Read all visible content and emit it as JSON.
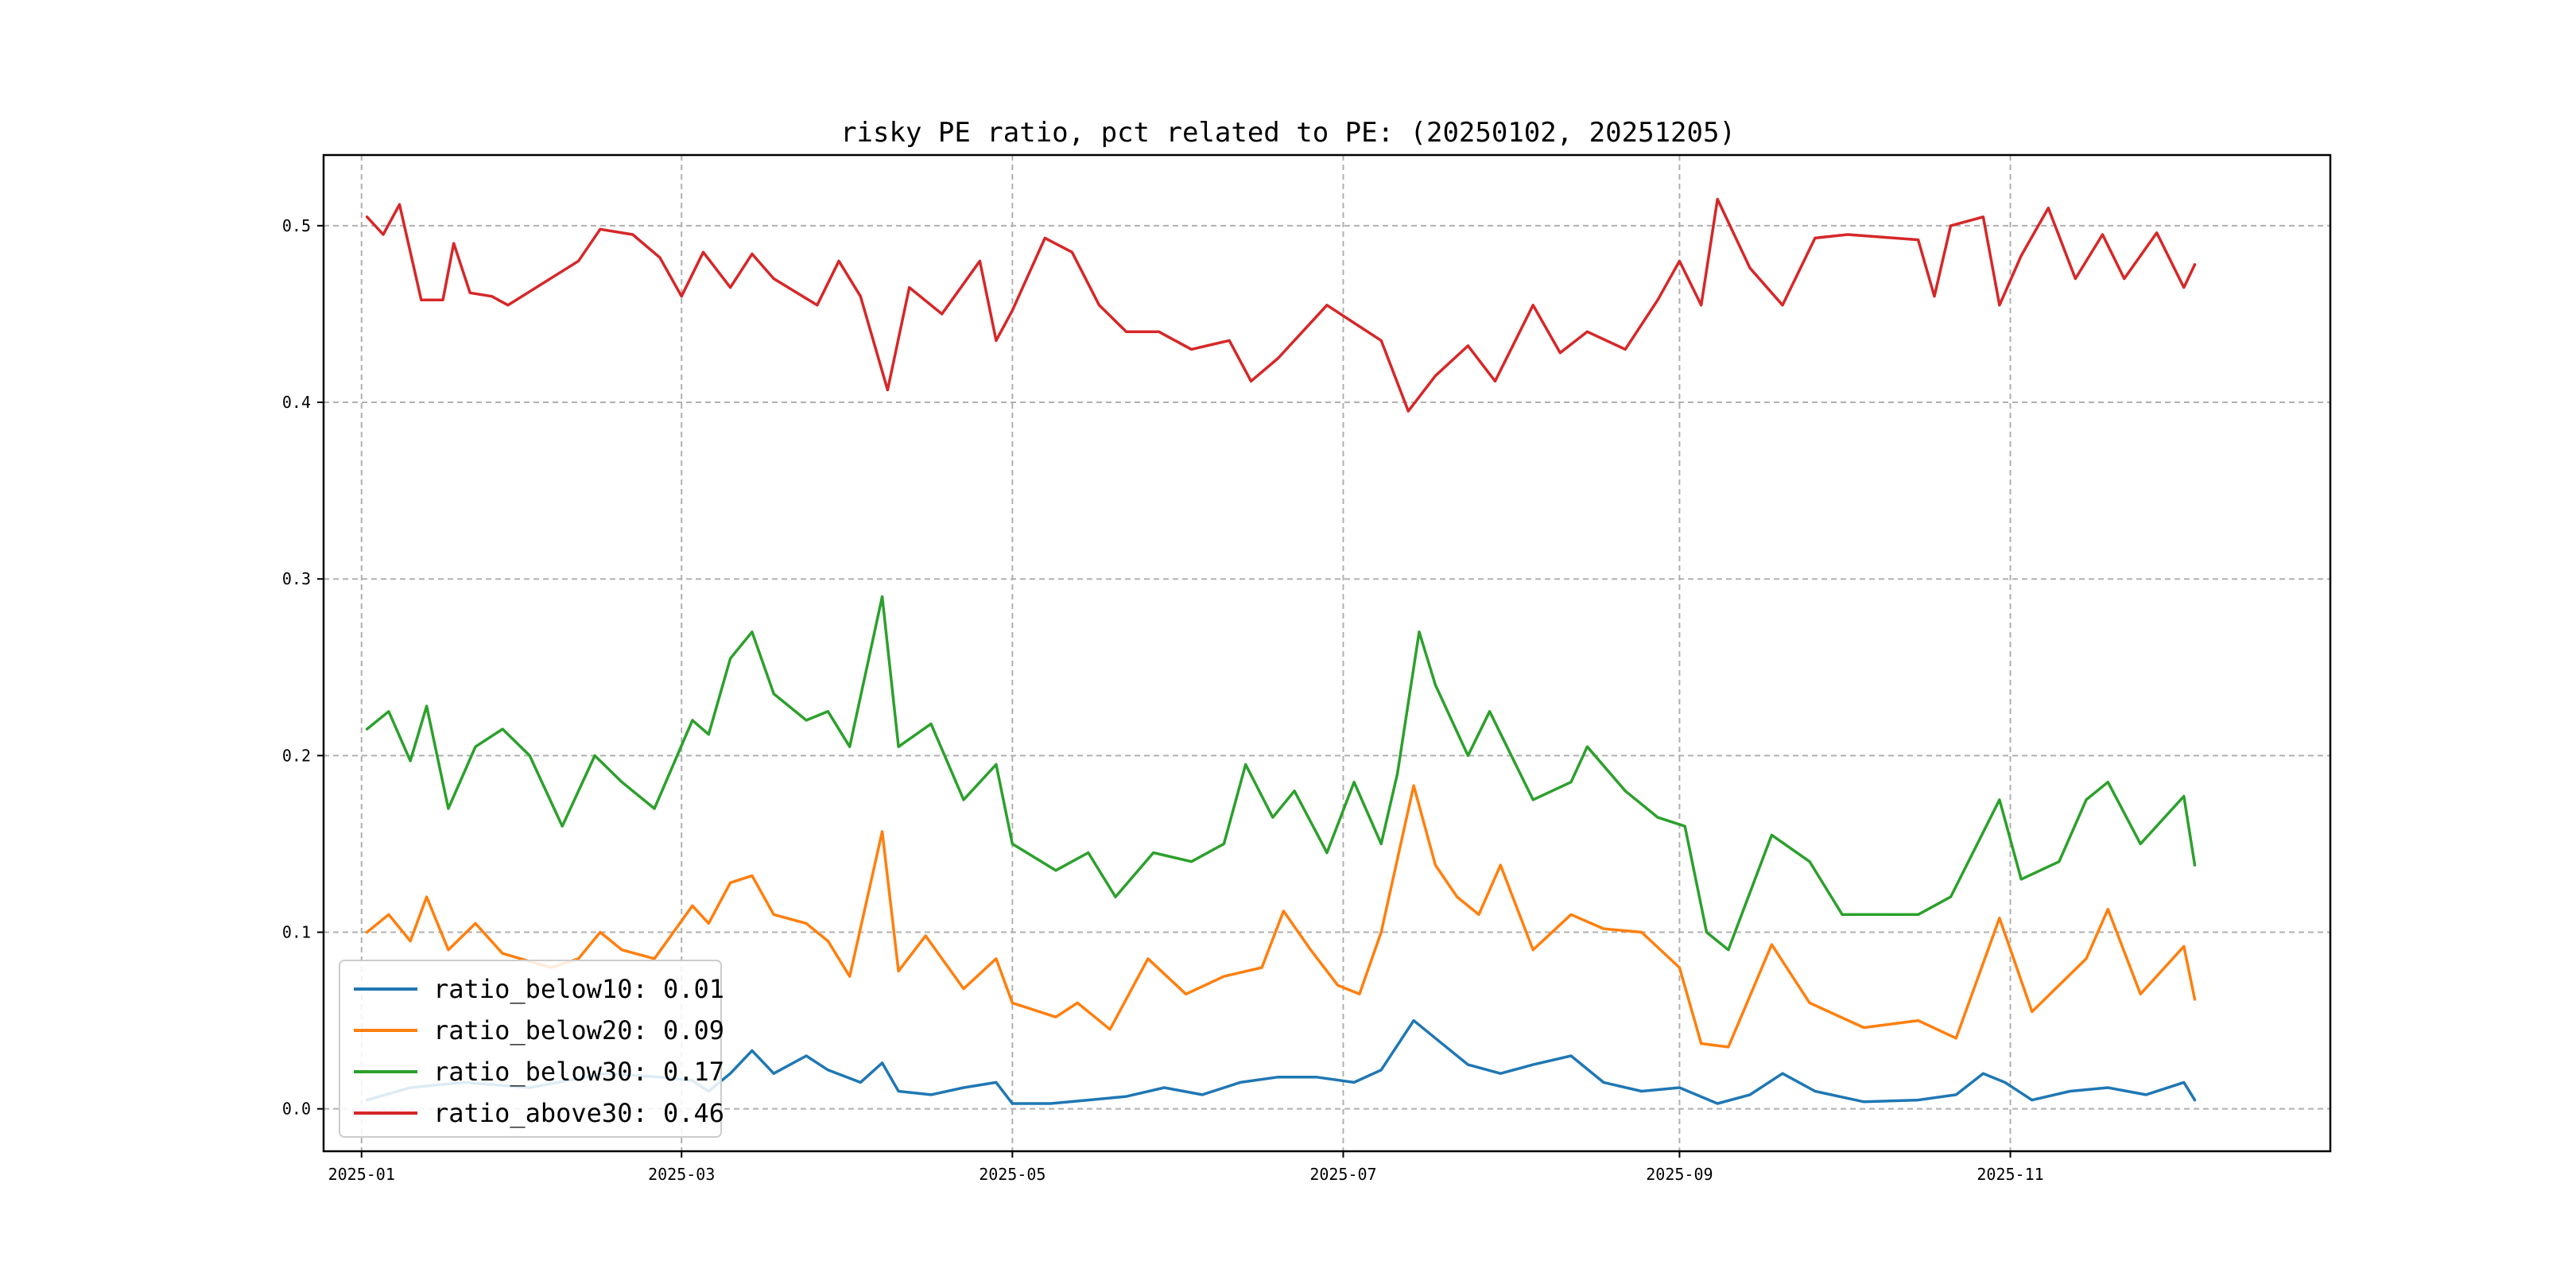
{
  "chart_data": {
    "type": "line",
    "title": "risky PE ratio, pct related to PE: (20250102, 20251205)",
    "xlabel": "",
    "ylabel": "",
    "xlim": [
      "2024-12-25",
      "2025-12-30"
    ],
    "ylim": [
      -0.024,
      0.54
    ],
    "grid": true,
    "legend_placement": "lower-left",
    "x_ticks": [
      {
        "value": "2025-01-01",
        "label": "2025-01"
      },
      {
        "value": "2025-03-01",
        "label": "2025-03"
      },
      {
        "value": "2025-05-01",
        "label": "2025-05"
      },
      {
        "value": "2025-07-01",
        "label": "2025-07"
      },
      {
        "value": "2025-09-01",
        "label": "2025-09"
      },
      {
        "value": "2025-11-01",
        "label": "2025-11"
      }
    ],
    "y_ticks": [
      {
        "value": 0.0,
        "label": "0.0"
      },
      {
        "value": 0.1,
        "label": "0.1"
      },
      {
        "value": 0.2,
        "label": "0.2"
      },
      {
        "value": 0.3,
        "label": "0.3"
      },
      {
        "value": 0.4,
        "label": "0.4"
      },
      {
        "value": 0.5,
        "label": "0.5"
      }
    ],
    "series": [
      {
        "name": "ratio_below10: 0.01",
        "color": "#1f77b4",
        "points": [
          [
            "2025-01-02",
            0.005
          ],
          [
            "2025-01-10",
            0.012
          ],
          [
            "2025-01-20",
            0.015
          ],
          [
            "2025-02-01",
            0.012
          ],
          [
            "2025-02-15",
            0.02
          ],
          [
            "2025-02-25",
            0.018
          ],
          [
            "2025-03-03",
            0.016
          ],
          [
            "2025-03-06",
            0.01
          ],
          [
            "2025-03-10",
            0.02
          ],
          [
            "2025-03-14",
            0.033
          ],
          [
            "2025-03-18",
            0.02
          ],
          [
            "2025-03-24",
            0.03
          ],
          [
            "2025-03-28",
            0.022
          ],
          [
            "2025-04-03",
            0.015
          ],
          [
            "2025-04-07",
            0.026
          ],
          [
            "2025-04-10",
            0.01
          ],
          [
            "2025-04-16",
            0.008
          ],
          [
            "2025-04-22",
            0.012
          ],
          [
            "2025-04-28",
            0.015
          ],
          [
            "2025-05-01",
            0.003
          ],
          [
            "2025-05-08",
            0.003
          ],
          [
            "2025-05-15",
            0.005
          ],
          [
            "2025-05-22",
            0.007
          ],
          [
            "2025-05-29",
            0.012
          ],
          [
            "2025-06-05",
            0.008
          ],
          [
            "2025-06-12",
            0.015
          ],
          [
            "2025-06-19",
            0.018
          ],
          [
            "2025-06-26",
            0.018
          ],
          [
            "2025-07-03",
            0.015
          ],
          [
            "2025-07-08",
            0.022
          ],
          [
            "2025-07-14",
            0.05
          ],
          [
            "2025-07-18",
            0.04
          ],
          [
            "2025-07-24",
            0.025
          ],
          [
            "2025-07-30",
            0.02
          ],
          [
            "2025-08-05",
            0.025
          ],
          [
            "2025-08-12",
            0.03
          ],
          [
            "2025-08-18",
            0.015
          ],
          [
            "2025-08-25",
            0.01
          ],
          [
            "2025-09-01",
            0.012
          ],
          [
            "2025-09-08",
            0.003
          ],
          [
            "2025-09-14",
            0.008
          ],
          [
            "2025-09-20",
            0.02
          ],
          [
            "2025-09-26",
            0.01
          ],
          [
            "2025-10-05",
            0.004
          ],
          [
            "2025-10-15",
            0.005
          ],
          [
            "2025-10-22",
            0.008
          ],
          [
            "2025-10-27",
            0.02
          ],
          [
            "2025-10-31",
            0.015
          ],
          [
            "2025-11-05",
            0.005
          ],
          [
            "2025-11-12",
            0.01
          ],
          [
            "2025-11-19",
            0.012
          ],
          [
            "2025-11-26",
            0.008
          ],
          [
            "2025-12-03",
            0.015
          ],
          [
            "2025-12-05",
            0.005
          ]
        ]
      },
      {
        "name": "ratio_below20: 0.09",
        "color": "#ff7f0e",
        "points": [
          [
            "2025-01-02",
            0.1
          ],
          [
            "2025-01-06",
            0.11
          ],
          [
            "2025-01-10",
            0.095
          ],
          [
            "2025-01-13",
            0.12
          ],
          [
            "2025-01-17",
            0.09
          ],
          [
            "2025-01-22",
            0.105
          ],
          [
            "2025-01-27",
            0.088
          ],
          [
            "2025-02-05",
            0.08
          ],
          [
            "2025-02-10",
            0.085
          ],
          [
            "2025-02-14",
            0.1
          ],
          [
            "2025-02-18",
            0.09
          ],
          [
            "2025-02-24",
            0.085
          ],
          [
            "2025-03-03",
            0.115
          ],
          [
            "2025-03-06",
            0.105
          ],
          [
            "2025-03-10",
            0.128
          ],
          [
            "2025-03-14",
            0.132
          ],
          [
            "2025-03-18",
            0.11
          ],
          [
            "2025-03-24",
            0.105
          ],
          [
            "2025-03-28",
            0.095
          ],
          [
            "2025-04-01",
            0.075
          ],
          [
            "2025-04-07",
            0.157
          ],
          [
            "2025-04-10",
            0.078
          ],
          [
            "2025-04-15",
            0.098
          ],
          [
            "2025-04-22",
            0.068
          ],
          [
            "2025-04-28",
            0.085
          ],
          [
            "2025-05-01",
            0.06
          ],
          [
            "2025-05-09",
            0.052
          ],
          [
            "2025-05-13",
            0.06
          ],
          [
            "2025-05-19",
            0.045
          ],
          [
            "2025-05-26",
            0.085
          ],
          [
            "2025-06-02",
            0.065
          ],
          [
            "2025-06-09",
            0.075
          ],
          [
            "2025-06-16",
            0.08
          ],
          [
            "2025-06-20",
            0.112
          ],
          [
            "2025-06-25",
            0.09
          ],
          [
            "2025-06-30",
            0.07
          ],
          [
            "2025-07-04",
            0.065
          ],
          [
            "2025-07-08",
            0.1
          ],
          [
            "2025-07-14",
            0.183
          ],
          [
            "2025-07-18",
            0.138
          ],
          [
            "2025-07-22",
            0.12
          ],
          [
            "2025-07-26",
            0.11
          ],
          [
            "2025-07-30",
            0.138
          ],
          [
            "2025-08-05",
            0.09
          ],
          [
            "2025-08-12",
            0.11
          ],
          [
            "2025-08-18",
            0.102
          ],
          [
            "2025-08-25",
            0.1
          ],
          [
            "2025-09-01",
            0.08
          ],
          [
            "2025-09-05",
            0.037
          ],
          [
            "2025-09-10",
            0.035
          ],
          [
            "2025-09-18",
            0.093
          ],
          [
            "2025-09-25",
            0.06
          ],
          [
            "2025-10-05",
            0.046
          ],
          [
            "2025-10-15",
            0.05
          ],
          [
            "2025-10-22",
            0.04
          ],
          [
            "2025-10-30",
            0.108
          ],
          [
            "2025-11-05",
            0.055
          ],
          [
            "2025-11-15",
            0.085
          ],
          [
            "2025-11-19",
            0.113
          ],
          [
            "2025-11-25",
            0.065
          ],
          [
            "2025-12-03",
            0.092
          ],
          [
            "2025-12-05",
            0.062
          ]
        ]
      },
      {
        "name": "ratio_below30: 0.17",
        "color": "#2ca02c",
        "points": [
          [
            "2025-01-02",
            0.215
          ],
          [
            "2025-01-06",
            0.225
          ],
          [
            "2025-01-10",
            0.197
          ],
          [
            "2025-01-13",
            0.228
          ],
          [
            "2025-01-17",
            0.17
          ],
          [
            "2025-01-22",
            0.205
          ],
          [
            "2025-01-27",
            0.215
          ],
          [
            "2025-02-01",
            0.2
          ],
          [
            "2025-02-07",
            0.16
          ],
          [
            "2025-02-13",
            0.2
          ],
          [
            "2025-02-18",
            0.185
          ],
          [
            "2025-02-24",
            0.17
          ],
          [
            "2025-03-03",
            0.22
          ],
          [
            "2025-03-06",
            0.212
          ],
          [
            "2025-03-10",
            0.255
          ],
          [
            "2025-03-14",
            0.27
          ],
          [
            "2025-03-18",
            0.235
          ],
          [
            "2025-03-24",
            0.22
          ],
          [
            "2025-03-28",
            0.225
          ],
          [
            "2025-04-01",
            0.205
          ],
          [
            "2025-04-07",
            0.29
          ],
          [
            "2025-04-10",
            0.205
          ],
          [
            "2025-04-16",
            0.218
          ],
          [
            "2025-04-22",
            0.175
          ],
          [
            "2025-04-28",
            0.195
          ],
          [
            "2025-05-01",
            0.15
          ],
          [
            "2025-05-09",
            0.135
          ],
          [
            "2025-05-15",
            0.145
          ],
          [
            "2025-05-20",
            0.12
          ],
          [
            "2025-05-27",
            0.145
          ],
          [
            "2025-06-03",
            0.14
          ],
          [
            "2025-06-09",
            0.15
          ],
          [
            "2025-06-13",
            0.195
          ],
          [
            "2025-06-18",
            0.165
          ],
          [
            "2025-06-22",
            0.18
          ],
          [
            "2025-06-28",
            0.145
          ],
          [
            "2025-07-03",
            0.185
          ],
          [
            "2025-07-08",
            0.15
          ],
          [
            "2025-07-11",
            0.19
          ],
          [
            "2025-07-15",
            0.27
          ],
          [
            "2025-07-18",
            0.24
          ],
          [
            "2025-07-24",
            0.2
          ],
          [
            "2025-07-28",
            0.225
          ],
          [
            "2025-08-05",
            0.175
          ],
          [
            "2025-08-12",
            0.185
          ],
          [
            "2025-08-15",
            0.205
          ],
          [
            "2025-08-22",
            0.18
          ],
          [
            "2025-08-28",
            0.165
          ],
          [
            "2025-09-02",
            0.16
          ],
          [
            "2025-09-06",
            0.1
          ],
          [
            "2025-09-10",
            0.09
          ],
          [
            "2025-09-18",
            0.155
          ],
          [
            "2025-09-25",
            0.14
          ],
          [
            "2025-10-01",
            0.11
          ],
          [
            "2025-10-15",
            0.11
          ],
          [
            "2025-10-21",
            0.12
          ],
          [
            "2025-10-30",
            0.175
          ],
          [
            "2025-11-03",
            0.13
          ],
          [
            "2025-11-10",
            0.14
          ],
          [
            "2025-11-15",
            0.175
          ],
          [
            "2025-11-19",
            0.185
          ],
          [
            "2025-11-25",
            0.15
          ],
          [
            "2025-12-03",
            0.177
          ],
          [
            "2025-12-05",
            0.138
          ]
        ]
      },
      {
        "name": "ratio_above30: 0.46",
        "color": "#d62728",
        "points": [
          [
            "2025-01-02",
            0.505
          ],
          [
            "2025-01-05",
            0.495
          ],
          [
            "2025-01-08",
            0.512
          ],
          [
            "2025-01-12",
            0.458
          ],
          [
            "2025-01-16",
            0.458
          ],
          [
            "2025-01-18",
            0.49
          ],
          [
            "2025-01-21",
            0.462
          ],
          [
            "2025-01-25",
            0.46
          ],
          [
            "2025-01-28",
            0.455
          ],
          [
            "2025-02-10",
            0.48
          ],
          [
            "2025-02-14",
            0.498
          ],
          [
            "2025-02-20",
            0.495
          ],
          [
            "2025-02-25",
            0.482
          ],
          [
            "2025-03-01",
            0.46
          ],
          [
            "2025-03-05",
            0.485
          ],
          [
            "2025-03-10",
            0.465
          ],
          [
            "2025-03-14",
            0.484
          ],
          [
            "2025-03-18",
            0.47
          ],
          [
            "2025-03-26",
            0.455
          ],
          [
            "2025-03-30",
            0.48
          ],
          [
            "2025-04-03",
            0.46
          ],
          [
            "2025-04-08",
            0.407
          ],
          [
            "2025-04-12",
            0.465
          ],
          [
            "2025-04-18",
            0.45
          ],
          [
            "2025-04-25",
            0.48
          ],
          [
            "2025-04-28",
            0.435
          ],
          [
            "2025-05-01",
            0.452
          ],
          [
            "2025-05-07",
            0.493
          ],
          [
            "2025-05-12",
            0.485
          ],
          [
            "2025-05-17",
            0.455
          ],
          [
            "2025-05-22",
            0.44
          ],
          [
            "2025-05-28",
            0.44
          ],
          [
            "2025-06-03",
            0.43
          ],
          [
            "2025-06-10",
            0.435
          ],
          [
            "2025-06-14",
            0.412
          ],
          [
            "2025-06-19",
            0.425
          ],
          [
            "2025-06-25",
            0.445
          ],
          [
            "2025-06-28",
            0.455
          ],
          [
            "2025-07-03",
            0.445
          ],
          [
            "2025-07-08",
            0.435
          ],
          [
            "2025-07-13",
            0.395
          ],
          [
            "2025-07-18",
            0.415
          ],
          [
            "2025-07-24",
            0.432
          ],
          [
            "2025-07-29",
            0.412
          ],
          [
            "2025-08-05",
            0.455
          ],
          [
            "2025-08-10",
            0.428
          ],
          [
            "2025-08-15",
            0.44
          ],
          [
            "2025-08-22",
            0.43
          ],
          [
            "2025-08-28",
            0.458
          ],
          [
            "2025-09-01",
            0.48
          ],
          [
            "2025-09-05",
            0.455
          ],
          [
            "2025-09-08",
            0.515
          ],
          [
            "2025-09-14",
            0.476
          ],
          [
            "2025-09-20",
            0.455
          ],
          [
            "2025-09-26",
            0.493
          ],
          [
            "2025-10-02",
            0.495
          ],
          [
            "2025-10-15",
            0.492
          ],
          [
            "2025-10-18",
            0.46
          ],
          [
            "2025-10-21",
            0.5
          ],
          [
            "2025-10-27",
            0.505
          ],
          [
            "2025-10-30",
            0.455
          ],
          [
            "2025-11-03",
            0.483
          ],
          [
            "2025-11-08",
            0.51
          ],
          [
            "2025-11-13",
            0.47
          ],
          [
            "2025-11-18",
            0.495
          ],
          [
            "2025-11-22",
            0.47
          ],
          [
            "2025-11-28",
            0.496
          ],
          [
            "2025-12-03",
            0.465
          ],
          [
            "2025-12-05",
            0.478
          ]
        ]
      }
    ]
  }
}
